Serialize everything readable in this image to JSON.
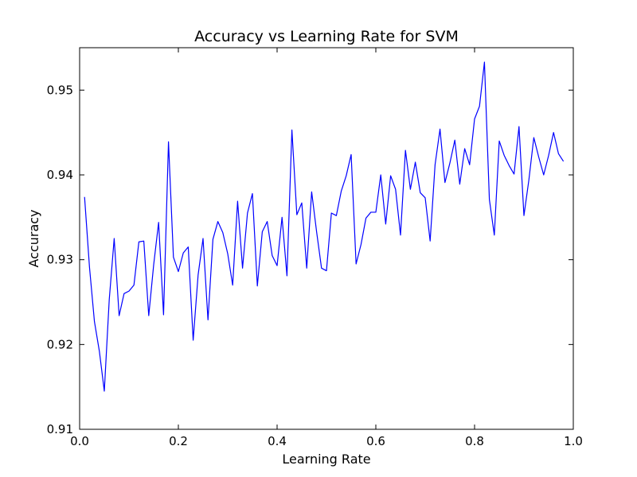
{
  "chart_data": {
    "type": "line",
    "title": "Accuracy vs Learning Rate for SVM",
    "xlabel": "Learning Rate",
    "ylabel": "Accuracy",
    "xlim": [
      0.0,
      1.0
    ],
    "ylim": [
      0.91,
      0.955
    ],
    "xticks": [
      0.0,
      0.2,
      0.4,
      0.6,
      0.8,
      1.0
    ],
    "xtick_labels": [
      "0.0",
      "0.2",
      "0.4",
      "0.6",
      "0.8",
      "1.0"
    ],
    "yticks": [
      0.91,
      0.92,
      0.93,
      0.94,
      0.95
    ],
    "ytick_labels": [
      "0.91",
      "0.92",
      "0.93",
      "0.94",
      "0.95"
    ],
    "grid": false,
    "series": [
      {
        "color": "#0000ff",
        "x": [
          0.01,
          0.02,
          0.03,
          0.04,
          0.05,
          0.06,
          0.07,
          0.08,
          0.09,
          0.1,
          0.11,
          0.12,
          0.13,
          0.14,
          0.15,
          0.16,
          0.17,
          0.18,
          0.19,
          0.2,
          0.21,
          0.22,
          0.23,
          0.24,
          0.25,
          0.26,
          0.27,
          0.28,
          0.29,
          0.3,
          0.31,
          0.32,
          0.33,
          0.34,
          0.35,
          0.36,
          0.37,
          0.38,
          0.39,
          0.4,
          0.41,
          0.42,
          0.43,
          0.44,
          0.45,
          0.46,
          0.47,
          0.48,
          0.49,
          0.5,
          0.51,
          0.52,
          0.53,
          0.54,
          0.55,
          0.56,
          0.57,
          0.58,
          0.59,
          0.6,
          0.61,
          0.62,
          0.63,
          0.64,
          0.65,
          0.66,
          0.67,
          0.68,
          0.69,
          0.7,
          0.71,
          0.72,
          0.73,
          0.74,
          0.75,
          0.76,
          0.77,
          0.78,
          0.79,
          0.8,
          0.81,
          0.82,
          0.83,
          0.84,
          0.85,
          0.86,
          0.87,
          0.88,
          0.89,
          0.9,
          0.91,
          0.92,
          0.93,
          0.94,
          0.95,
          0.96,
          0.97,
          0.98
        ],
        "y": [
          0.9374,
          0.9291,
          0.9227,
          0.9192,
          0.9145,
          0.9253,
          0.9325,
          0.9234,
          0.926,
          0.9263,
          0.927,
          0.9321,
          0.9322,
          0.9234,
          0.9294,
          0.9344,
          0.9235,
          0.9439,
          0.9303,
          0.9286,
          0.9308,
          0.9315,
          0.9205,
          0.9282,
          0.9325,
          0.9229,
          0.9324,
          0.9345,
          0.9332,
          0.9307,
          0.927,
          0.9369,
          0.929,
          0.9355,
          0.9378,
          0.9269,
          0.9333,
          0.9345,
          0.9305,
          0.9293,
          0.935,
          0.9281,
          0.9453,
          0.9353,
          0.9367,
          0.929,
          0.938,
          0.9333,
          0.929,
          0.9287,
          0.9355,
          0.9352,
          0.9381,
          0.9399,
          0.9424,
          0.9295,
          0.9318,
          0.9349,
          0.9356,
          0.9356,
          0.94,
          0.9342,
          0.9399,
          0.9383,
          0.9329,
          0.9429,
          0.9383,
          0.9415,
          0.9379,
          0.9373,
          0.9322,
          0.9412,
          0.9454,
          0.9391,
          0.9414,
          0.9441,
          0.9389,
          0.9431,
          0.9412,
          0.9466,
          0.9481,
          0.9533,
          0.9371,
          0.9329,
          0.944,
          0.9423,
          0.9411,
          0.9401,
          0.9457,
          0.9352,
          0.9394,
          0.9444,
          0.9421,
          0.94,
          0.9423,
          0.945,
          0.9425,
          0.9416
        ]
      }
    ]
  }
}
